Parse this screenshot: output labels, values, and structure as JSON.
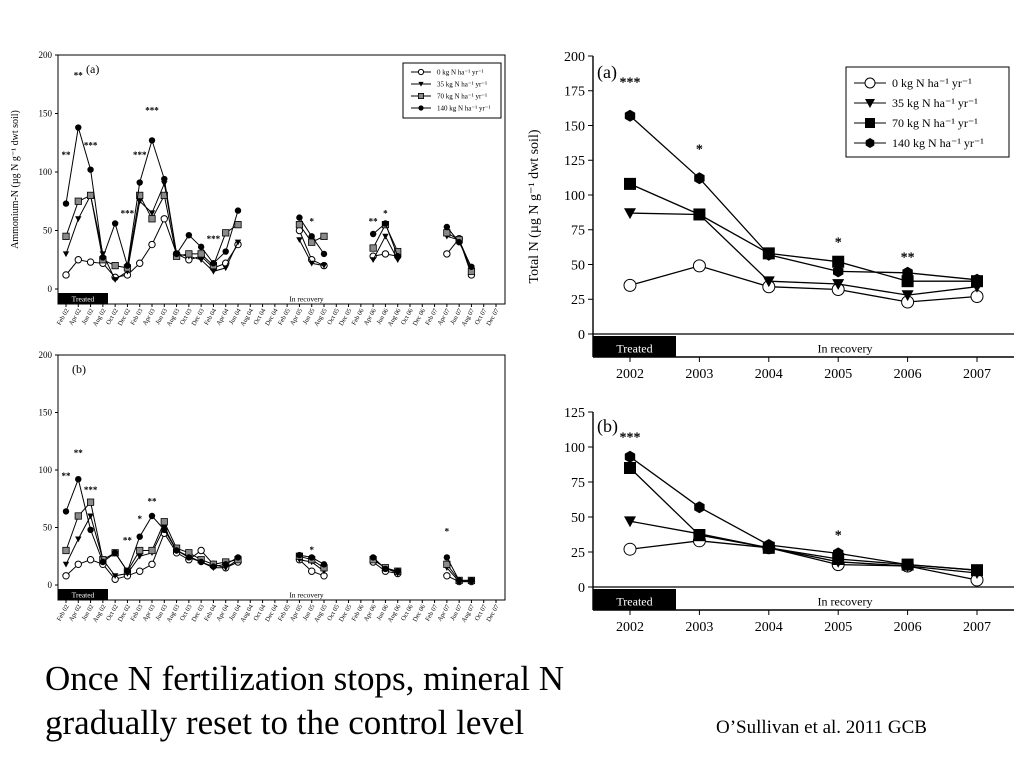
{
  "caption": {
    "line1": "Once N fertilization stops, mineral N",
    "line2": "gradually reset to the control level"
  },
  "citation": "O’Sullivan et al. 2011 GCB",
  "colors": {
    "ink": "#000000",
    "open_fill": "#ffffff",
    "gray_fill": "#8a8a8a",
    "treated_band": "#000000"
  },
  "legend_labels": [
    "0 kg N ha⁻¹ yr⁻¹",
    "35 kg N ha⁻¹ yr⁻¹",
    "70 kg N ha⁻¹ yr⁻¹",
    "140 kg N ha⁻¹ yr⁻¹"
  ],
  "chart_data": [
    {
      "id": "left-a",
      "type": "line",
      "panel_label": "(a)",
      "ylabel": "Ammonium-N (µg N g⁻¹ dwt soil)",
      "ylim": [
        0,
        200
      ],
      "yticks": [
        0,
        50,
        100,
        150,
        200
      ],
      "treated_label": "Treated",
      "recovery_label": "In recovery",
      "categories": [
        "Feb 02",
        "Apr 02",
        "Jun 02",
        "Aug 02",
        "Oct 02",
        "Dec 02",
        "Feb 03",
        "Apr 03",
        "Jun 03",
        "Aug 03",
        "Oct 03",
        "Dec 03",
        "Feb 04",
        "Apr 04",
        "Jun 04",
        "Aug 04",
        "Oct 04",
        "Dec 04",
        "Feb 05",
        "Apr 05",
        "Jun 05",
        "Aug 05",
        "Oct 05",
        "Dec 05",
        "Feb 06",
        "Apr 06",
        "Jun 06",
        "Aug 06",
        "Oct 06",
        "Dec 06",
        "Feb 07",
        "Apr 07",
        "Jun 07",
        "Aug 07",
        "Oct 07",
        "Dec 07"
      ],
      "series": [
        {
          "name": "0 kg N ha⁻¹ yr⁻¹",
          "marker": "circle-open",
          "values": [
            12,
            25,
            23,
            22,
            10,
            12,
            22,
            38,
            60,
            30,
            25,
            28,
            18,
            22,
            38,
            null,
            null,
            null,
            null,
            50,
            25,
            20,
            null,
            null,
            null,
            28,
            30,
            28,
            null,
            null,
            null,
            30,
            43,
            12,
            null,
            null
          ]
        },
        {
          "name": "35 kg N ha⁻¹ yr⁻¹",
          "marker": "triangle",
          "values": [
            30,
            60,
            80,
            30,
            8,
            15,
            75,
            65,
            90,
            30,
            28,
            25,
            15,
            18,
            40,
            null,
            null,
            null,
            null,
            42,
            22,
            20,
            null,
            null,
            null,
            25,
            45,
            25,
            null,
            null,
            null,
            45,
            42,
            18,
            null,
            null
          ]
        },
        {
          "name": "70 kg N ha⁻¹ yr⁻¹",
          "marker": "square-gray",
          "values": [
            45,
            75,
            80,
            25,
            20,
            18,
            80,
            60,
            80,
            28,
            30,
            30,
            20,
            48,
            55,
            null,
            null,
            null,
            null,
            55,
            40,
            45,
            null,
            null,
            null,
            35,
            55,
            32,
            null,
            null,
            null,
            48,
            42,
            15,
            null,
            null
          ]
        },
        {
          "name": "140 kg N ha⁻¹ yr⁻¹",
          "marker": "circle-filled",
          "values": [
            73,
            138,
            102,
            27,
            56,
            20,
            91,
            127,
            94,
            30,
            46,
            36,
            22,
            32,
            67,
            null,
            null,
            null,
            null,
            61,
            45,
            30,
            null,
            null,
            null,
            47,
            56,
            28,
            null,
            null,
            null,
            53,
            40,
            19,
            null,
            null
          ]
        }
      ],
      "annotations": [
        {
          "text": "**",
          "x": "Feb 02",
          "y": 112
        },
        {
          "text": "**",
          "x": "Apr 02",
          "y": 180
        },
        {
          "text": "***",
          "x": "Jun 02",
          "y": 120
        },
        {
          "text": "***",
          "x": "Dec 02",
          "y": 62
        },
        {
          "text": "***",
          "x": "Feb 03",
          "y": 112
        },
        {
          "text": "***",
          "x": "Apr 03",
          "y": 150
        },
        {
          "text": "***",
          "x": "Feb 04",
          "y": 40
        },
        {
          "text": "*",
          "x": "Jun 05",
          "y": 55
        },
        {
          "text": "**",
          "x": "Apr 06",
          "y": 55
        },
        {
          "text": "*",
          "x": "Jun 06",
          "y": 62
        }
      ]
    },
    {
      "id": "left-b",
      "type": "line",
      "panel_label": "(b)",
      "ylabel": "",
      "ylim": [
        0,
        200
      ],
      "yticks": [
        0,
        50,
        100,
        150,
        200
      ],
      "treated_label": "Treated",
      "recovery_label": "In recovery",
      "categories": [
        "Feb 02",
        "Apr 02",
        "Jun 02",
        "Aug 02",
        "Oct 02",
        "Dec 02",
        "Feb 03",
        "Apr 03",
        "Jun 03",
        "Aug 03",
        "Oct 03",
        "Dec 03",
        "Feb 04",
        "Apr 04",
        "Jun 04",
        "Aug 04",
        "Oct 04",
        "Dec 04",
        "Feb 05",
        "Apr 05",
        "Jun 05",
        "Aug 05",
        "Oct 05",
        "Dec 05",
        "Feb 06",
        "Apr 06",
        "Jun 06",
        "Aug 06",
        "Oct 06",
        "Dec 06",
        "Feb 07",
        "Apr 07",
        "Jun 07",
        "Aug 07",
        "Oct 07",
        "Dec 07"
      ],
      "series": [
        {
          "name": "0 kg N ha⁻¹ yr⁻¹",
          "marker": "circle-open",
          "values": [
            8,
            18,
            22,
            18,
            5,
            8,
            12,
            18,
            45,
            28,
            22,
            30,
            18,
            15,
            20,
            null,
            null,
            null,
            null,
            22,
            12,
            8,
            null,
            null,
            null,
            20,
            12,
            10,
            null,
            null,
            null,
            8,
            3,
            3,
            null,
            null
          ]
        },
        {
          "name": "35 kg N ha⁻¹ yr⁻¹",
          "marker": "triangle",
          "values": [
            18,
            40,
            60,
            22,
            8,
            10,
            25,
            28,
            50,
            30,
            25,
            20,
            15,
            15,
            22,
            null,
            null,
            null,
            null,
            22,
            20,
            12,
            null,
            null,
            null,
            22,
            15,
            10,
            null,
            null,
            null,
            15,
            3,
            3,
            null,
            null
          ]
        },
        {
          "name": "70 kg N ha⁻¹ yr⁻¹",
          "marker": "square-gray",
          "values": [
            30,
            60,
            72,
            22,
            28,
            12,
            30,
            30,
            55,
            32,
            28,
            22,
            18,
            20,
            22,
            null,
            null,
            null,
            null,
            25,
            22,
            15,
            null,
            null,
            null,
            22,
            15,
            12,
            null,
            null,
            null,
            18,
            4,
            4,
            null,
            null
          ]
        },
        {
          "name": "140 kg N ha⁻¹ yr⁻¹",
          "marker": "circle-filled",
          "values": [
            64,
            92,
            48,
            20,
            28,
            12,
            42,
            60,
            48,
            30,
            24,
            20,
            16,
            18,
            24,
            null,
            null,
            null,
            null,
            26,
            24,
            18,
            null,
            null,
            null,
            24,
            14,
            12,
            null,
            null,
            null,
            24,
            4,
            4,
            null,
            null
          ]
        }
      ],
      "annotations": [
        {
          "text": "**",
          "x": "Feb 02",
          "y": 92
        },
        {
          "text": "**",
          "x": "Apr 02",
          "y": 112
        },
        {
          "text": "***",
          "x": "Jun 02",
          "y": 80
        },
        {
          "text": "**",
          "x": "Dec 02",
          "y": 36
        },
        {
          "text": "*",
          "x": "Feb 03",
          "y": 55
        },
        {
          "text": "**",
          "x": "Apr 03",
          "y": 70
        },
        {
          "text": "*",
          "x": "Jun 05",
          "y": 28
        },
        {
          "text": "*",
          "x": "Apr 07",
          "y": 44
        }
      ]
    },
    {
      "id": "right-a",
      "type": "line",
      "panel_label": "(a)",
      "ylabel": "Total N (µg N g⁻¹ dwt soil)",
      "ylim": [
        0,
        200
      ],
      "yticks": [
        0,
        25,
        50,
        75,
        100,
        125,
        150,
        175,
        200
      ],
      "treated_label": "Treated",
      "recovery_label": "In recovery",
      "categories": [
        "2002",
        "2003",
        "2004",
        "2005",
        "2006",
        "2007"
      ],
      "series": [
        {
          "name": "0 kg N ha⁻¹ yr⁻¹",
          "marker": "circle-open",
          "values": [
            35,
            49,
            34,
            32,
            23,
            27
          ]
        },
        {
          "name": "35 kg N ha⁻¹ yr⁻¹",
          "marker": "triangle",
          "values": [
            87,
            86,
            38,
            36,
            28,
            34
          ]
        },
        {
          "name": "70 kg N ha⁻¹ yr⁻¹",
          "marker": "square-filled",
          "values": [
            108,
            86,
            58,
            52,
            38,
            38
          ]
        },
        {
          "name": "140 kg N ha⁻¹ yr⁻¹",
          "marker": "hexagon-filled",
          "values": [
            157,
            112,
            57,
            45,
            44,
            39
          ]
        }
      ],
      "annotations": [
        {
          "text": "***",
          "x": "2002",
          "y": 178
        },
        {
          "text": "*",
          "x": "2003",
          "y": 130
        },
        {
          "text": "*",
          "x": "2005",
          "y": 63
        },
        {
          "text": "**",
          "x": "2006",
          "y": 52
        }
      ]
    },
    {
      "id": "right-b",
      "type": "line",
      "panel_label": "(b)",
      "ylabel": "",
      "ylim": [
        0,
        125
      ],
      "yticks": [
        0,
        25,
        50,
        75,
        100,
        125
      ],
      "treated_label": "Treated",
      "recovery_label": "In recovery",
      "categories": [
        "2002",
        "2003",
        "2004",
        "2005",
        "2006",
        "2007"
      ],
      "series": [
        {
          "name": "0 kg N ha⁻¹ yr⁻¹",
          "marker": "circle-open",
          "values": [
            27,
            33,
            28,
            16,
            15,
            5
          ]
        },
        {
          "name": "35 kg N ha⁻¹ yr⁻¹",
          "marker": "triangle",
          "values": [
            47,
            38,
            28,
            18,
            15,
            10
          ]
        },
        {
          "name": "70 kg N ha⁻¹ yr⁻¹",
          "marker": "square-filled",
          "values": [
            85,
            37,
            28,
            20,
            16,
            12
          ]
        },
        {
          "name": "140 kg N ha⁻¹ yr⁻¹",
          "marker": "hexagon-filled",
          "values": [
            93,
            57,
            30,
            24,
            16,
            12
          ]
        }
      ],
      "annotations": [
        {
          "text": "***",
          "x": "2002",
          "y": 104
        },
        {
          "text": "*",
          "x": "2005",
          "y": 34
        }
      ]
    }
  ]
}
